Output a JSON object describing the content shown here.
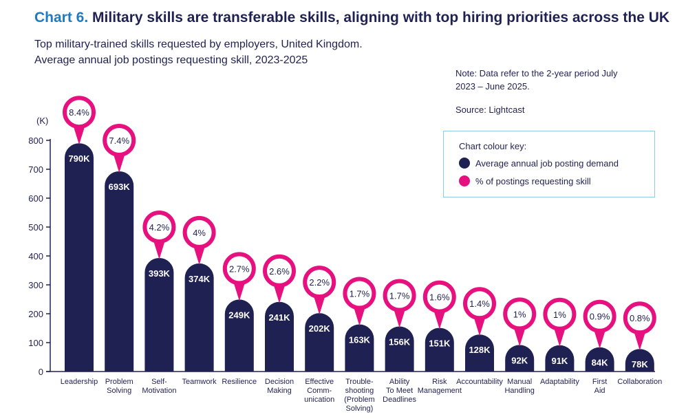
{
  "title_prefix": "Chart 6.",
  "title_main": "Military skills are transferable skills, aligning with top hiring priorities across the UK",
  "subtitle_lines": [
    "Top military-trained skills requested by employers, United Kingdom.",
    "Average annual job postings requesting skill, 2023-2025"
  ],
  "note_lines": [
    "Note: Data refer to the 2-year period July",
    "2023 – June 2025."
  ],
  "source": "Source: Lightcast",
  "legend": {
    "title": "Chart colour key:",
    "items": [
      {
        "label": "Average annual job posting demand",
        "color": "#1f2152"
      },
      {
        "label": "% of postings requesting skill",
        "color": "#e6117f"
      }
    ]
  },
  "chart_data": {
    "type": "bar",
    "ylabel": "(K)",
    "ylim": [
      0,
      800
    ],
    "yticks": [
      0,
      100,
      200,
      300,
      400,
      500,
      600,
      700,
      800
    ],
    "grid": false,
    "categories": [
      [
        "Leadership"
      ],
      [
        "Problem",
        "Solving"
      ],
      [
        "Self-",
        "Motivation"
      ],
      [
        "Teamwork"
      ],
      [
        "Resilience"
      ],
      [
        "Decision",
        "Making"
      ],
      [
        "Effective",
        "Comm-",
        "unication"
      ],
      [
        "Trouble-",
        "shooting",
        "(Problem",
        "Solving)"
      ],
      [
        "Ability",
        "To Meet",
        "Deadlines"
      ],
      [
        "Risk",
        "Management"
      ],
      [
        "Accountability"
      ],
      [
        "Manual",
        "Handling"
      ],
      [
        "Adaptability"
      ],
      [
        "First",
        "Aid"
      ],
      [
        "Collaboration"
      ]
    ],
    "series": [
      {
        "name": "Average annual job posting demand",
        "values": [
          790,
          693,
          393,
          374,
          249,
          241,
          202,
          163,
          156,
          151,
          128,
          92,
          91,
          84,
          78
        ],
        "labels": [
          "790K",
          "693K",
          "393K",
          "374K",
          "249K",
          "241K",
          "202K",
          "163K",
          "156K",
          "151K",
          "128K",
          "92K",
          "91K",
          "84K",
          "78K"
        ],
        "color": "#1f2152"
      },
      {
        "name": "% of postings requesting skill",
        "values": [
          8.4,
          7.4,
          4.2,
          4,
          2.7,
          2.6,
          2.2,
          1.7,
          1.7,
          1.6,
          1.4,
          1,
          1,
          0.9,
          0.8
        ],
        "labels": [
          "8.4%",
          "7.4%",
          "4.2%",
          "4%",
          "2.7%",
          "2.6%",
          "2.2%",
          "1.7%",
          "1.7%",
          "1.6%",
          "1.4%",
          "1%",
          "1%",
          "0.9%",
          "0.8%"
        ],
        "color": "#e6117f"
      }
    ]
  }
}
